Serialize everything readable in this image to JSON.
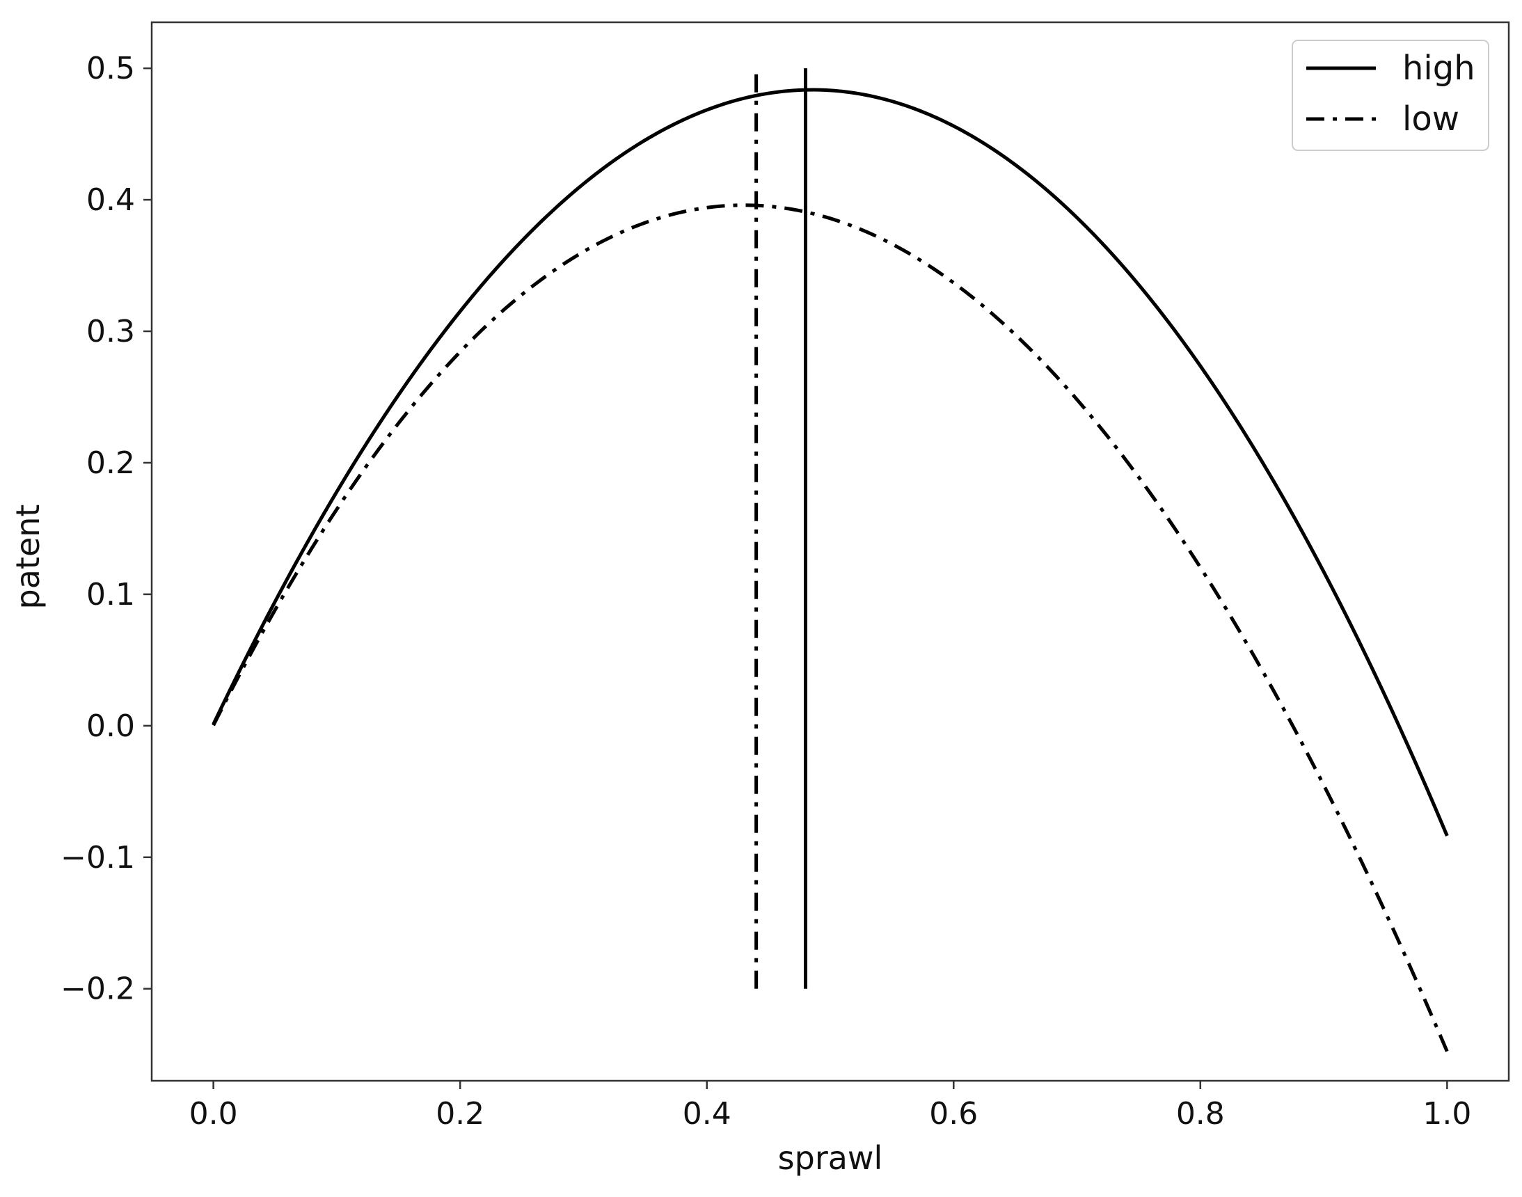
{
  "chart_data": {
    "type": "line",
    "title": "",
    "xlabel": "sprawl",
    "ylabel": "patent",
    "xlim": [
      -0.05,
      1.05
    ],
    "ylim": [
      -0.27,
      0.535
    ],
    "xticks": [
      0.0,
      0.2,
      0.4,
      0.6,
      0.8,
      1.0
    ],
    "xtick_labels": [
      "0.0",
      "0.2",
      "0.4",
      "0.6",
      "0.8",
      "1.0"
    ],
    "yticks": [
      -0.2,
      -0.1,
      0.0,
      0.1,
      0.2,
      0.3,
      0.4,
      0.5
    ],
    "ytick_labels": [
      "−0.2",
      "−0.1",
      "0.0",
      "0.1",
      "0.2",
      "0.3",
      "0.4",
      "0.5"
    ],
    "grid": false,
    "legend_position": "top-right",
    "series": [
      {
        "name": "high",
        "style": "solid",
        "color": "#000000",
        "x": [
          0.0,
          0.1,
          0.2,
          0.3,
          0.4,
          0.48,
          0.5,
          0.6,
          0.7,
          0.8,
          0.9,
          1.0
        ],
        "y": [
          0.0,
          0.179,
          0.316,
          0.413,
          0.468,
          0.483,
          0.482,
          0.455,
          0.386,
          0.276,
          0.118,
          -0.085
        ]
      },
      {
        "name": "low",
        "style": "dashdot",
        "color": "#000000",
        "x": [
          0.0,
          0.1,
          0.2,
          0.3,
          0.4,
          0.44,
          0.5,
          0.6,
          0.7,
          0.8,
          0.9,
          1.0
        ],
        "y": [
          0.0,
          0.164,
          0.286,
          0.362,
          0.393,
          0.394,
          0.385,
          0.337,
          0.25,
          0.12,
          -0.045,
          -0.248
        ]
      }
    ],
    "vlines": [
      {
        "series": "low",
        "style": "dashdot",
        "x": 0.44,
        "ymin": -0.2,
        "ymax": 0.5
      },
      {
        "series": "high",
        "style": "solid",
        "x": 0.48,
        "ymin": -0.2,
        "ymax": 0.5
      }
    ]
  }
}
